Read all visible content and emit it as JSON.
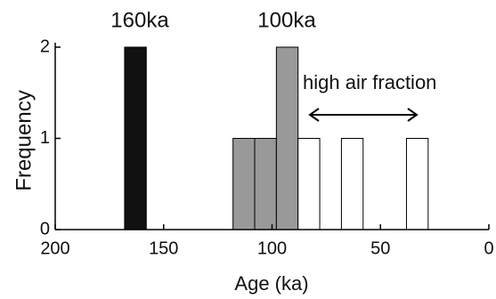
{
  "chart_data": {
    "type": "histogram",
    "xlabel": "Age (ka)",
    "ylabel": "Frequency",
    "bins": [
      168,
      158,
      148,
      138,
      128,
      118,
      108,
      98,
      88,
      78,
      68,
      58,
      48,
      38,
      28
    ],
    "series": [
      {
        "color": "#111111",
        "values": [
          2,
          0,
          0,
          0,
          0,
          0,
          0,
          0,
          0,
          0,
          0,
          0,
          0,
          0
        ]
      },
      {
        "color": "#999999",
        "values": [
          0,
          0,
          0,
          0,
          0,
          1,
          1,
          2,
          0,
          0,
          0,
          0,
          0,
          0
        ]
      },
      {
        "color": "#ffffff",
        "values": [
          0,
          0,
          0,
          0,
          0,
          0,
          0,
          0,
          1,
          0,
          1,
          0,
          0,
          1
        ]
      }
    ],
    "xlim": [
      200,
      0
    ],
    "xticks": [
      200,
      150,
      100,
      50,
      0
    ],
    "ylim": [
      0,
      2
    ],
    "yticks": [
      0,
      1,
      2
    ],
    "annotations": [
      "160ka",
      "100ka",
      "high air fraction"
    ]
  }
}
